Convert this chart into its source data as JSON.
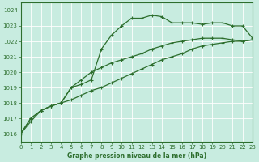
{
  "title": "Graphe pression niveau de la mer (hPa)",
  "background_color": "#c8ece0",
  "line_color": "#2d6e2d",
  "grid_color": "#b0d8c8",
  "xlim": [
    0,
    23
  ],
  "ylim": [
    1015.5,
    1024.5
  ],
  "yticks": [
    1016,
    1017,
    1018,
    1019,
    1020,
    1021,
    1022,
    1023,
    1024
  ],
  "xticks": [
    0,
    1,
    2,
    3,
    4,
    5,
    6,
    7,
    8,
    9,
    10,
    11,
    12,
    13,
    14,
    15,
    16,
    17,
    18,
    19,
    20,
    21,
    22,
    23
  ],
  "hours": [
    0,
    1,
    2,
    3,
    4,
    5,
    6,
    7,
    8,
    9,
    10,
    11,
    12,
    13,
    14,
    15,
    16,
    17,
    18,
    19,
    20,
    21,
    22,
    23
  ],
  "line_top": [
    1016.0,
    1017.0,
    1017.5,
    1017.8,
    1018.0,
    1019.0,
    1019.2,
    1019.5,
    1021.5,
    1022.4,
    1023.0,
    1023.5,
    1023.5,
    1023.7,
    1023.6,
    1023.2,
    1023.2,
    1023.2,
    1023.1,
    1023.2,
    1023.2,
    1023.0,
    1023.0,
    1022.2
  ],
  "line_mid": [
    1016.0,
    1017.0,
    1017.5,
    1017.8,
    1018.0,
    1019.0,
    1019.5,
    1020.0,
    1020.3,
    1020.6,
    1020.8,
    1021.0,
    1021.2,
    1021.5,
    1021.7,
    1021.9,
    1022.0,
    1022.1,
    1022.2,
    1022.2,
    1022.2,
    1022.1,
    1022.0,
    1022.1
  ],
  "line_bot": [
    1016.0,
    1016.8,
    1017.5,
    1017.8,
    1018.0,
    1018.2,
    1018.5,
    1018.8,
    1019.0,
    1019.3,
    1019.6,
    1019.9,
    1020.2,
    1020.5,
    1020.8,
    1021.0,
    1021.2,
    1021.5,
    1021.7,
    1021.8,
    1021.9,
    1022.0,
    1022.0,
    1022.1
  ]
}
